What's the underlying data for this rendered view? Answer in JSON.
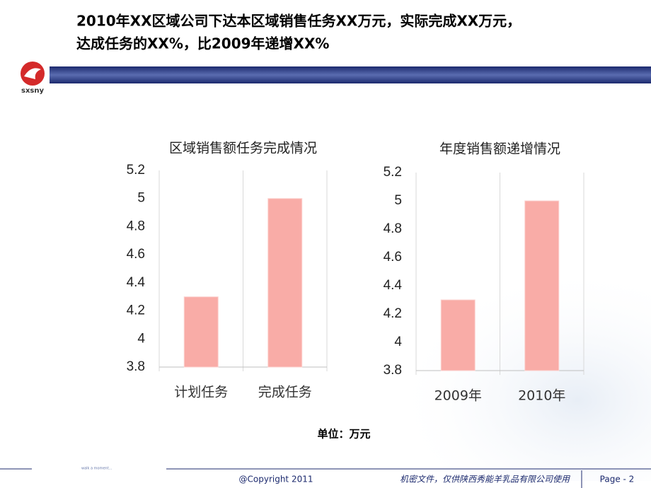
{
  "header": {
    "title_lines": [
      "2010年XX区域公司下达本区域销售任务XX万元，实际完成XX万元，",
      "达成任务的XX%，比2009年递增XX%"
    ],
    "logo": "sxsny"
  },
  "chart_data": [
    {
      "type": "bar",
      "title": "区域销售额任务完成情况",
      "categories": [
        "计划任务",
        "完成任务"
      ],
      "values": [
        4.3,
        5
      ],
      "color": "#f9aca7",
      "ylim": [
        3.8,
        5.2
      ],
      "yticks": [
        3.8,
        4,
        4.2,
        4.4,
        4.6,
        4.8,
        5,
        5.2
      ],
      "grid": true
    },
    {
      "type": "bar",
      "title": "年度销售额递增情况",
      "categories": [
        "2009年",
        "2010年"
      ],
      "values": [
        4.3,
        5
      ],
      "color": "#f9aca7",
      "ylim": [
        3.8,
        5.2
      ],
      "yticks": [
        3.8,
        4,
        4.2,
        4.4,
        4.6,
        4.8,
        5,
        5.2
      ],
      "grid": true
    }
  ],
  "unit_note": "单位：万元",
  "footer": {
    "tagline": "walk a moment...",
    "copyright": "@Copyright 2011",
    "confidential": "机密文件，仅供陕西秀能羊乳品有限公司使用",
    "page": "Page - 2"
  }
}
